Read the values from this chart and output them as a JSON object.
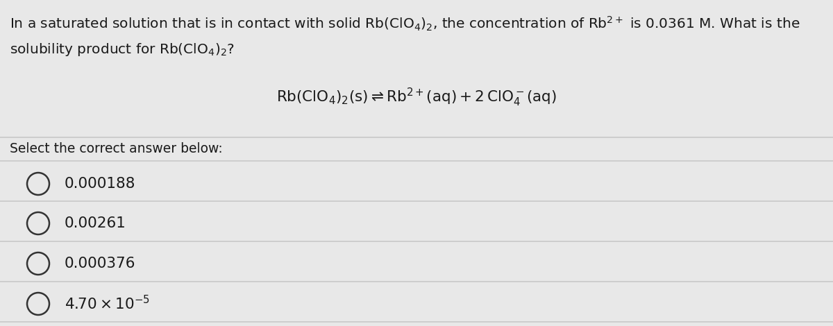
{
  "background_color": "#e8e8e8",
  "question_line1": "In a saturated solution that is in contact with solid $\\mathrm{Rb(ClO_4)_2}$, the concentration of $\\mathrm{Rb^{2+}}$ is 0.0361 M. What is the",
  "question_line2": "solubility product for $\\mathrm{Rb(ClO_4)_2}$?",
  "equation": "$\\mathrm{Rb(ClO_4)_2(s) \\rightleftharpoons Rb^{2+}(aq) + 2\\,ClO_4^-(aq)}$",
  "select_text": "Select the correct answer below:",
  "choices": [
    "0.000188",
    "0.00261",
    "0.000376",
    "$4.70 \\times 10^{-5}$"
  ],
  "divider_color": "#c8c8c8",
  "text_color": "#1a1a1a",
  "circle_color": "#333333",
  "font_size_question": 14.5,
  "font_size_equation": 15.5,
  "font_size_choices": 15.5,
  "font_size_select": 13.5
}
